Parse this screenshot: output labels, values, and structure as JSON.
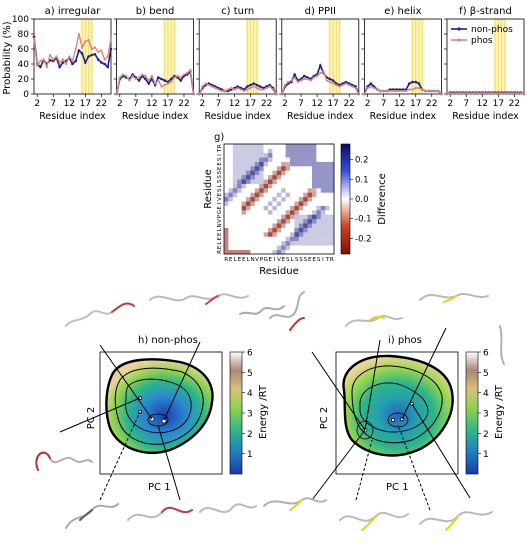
{
  "chart_data": [
    {
      "type": "line",
      "title": "a) irregular",
      "xlabel": "Residue index",
      "ylabel": "Probability (%)",
      "xticks": [
        2,
        7,
        12,
        17,
        22
      ],
      "yticks": [
        0,
        20,
        40,
        60,
        80,
        100
      ],
      "ylim": [
        0,
        100
      ],
      "xlim": [
        1,
        25
      ],
      "highlight_residues": [
        16,
        17,
        18,
        19
      ],
      "series": [
        {
          "name": "non-phos",
          "color": "#1f1f8f",
          "values": [
            76,
            40,
            36,
            45,
            40,
            45,
            44,
            48,
            36,
            42,
            44,
            48,
            40,
            44,
            58,
            54,
            42,
            50,
            52,
            53,
            46,
            42,
            40,
            36,
            60
          ]
        },
        {
          "name": "phos",
          "color": "#d8887a",
          "values": [
            74,
            38,
            44,
            46,
            36,
            52,
            46,
            50,
            42,
            46,
            40,
            50,
            44,
            60,
            80,
            62,
            70,
            72,
            60,
            62,
            56,
            58,
            46,
            50,
            74
          ]
        }
      ]
    },
    {
      "type": "line",
      "title": "b) bend",
      "xlabel": "Residue index",
      "xticks": [
        2,
        7,
        12,
        17,
        22
      ],
      "ylim": [
        0,
        100
      ],
      "xlim": [
        1,
        25
      ],
      "highlight_residues": [
        16,
        17,
        18,
        19
      ],
      "series": [
        {
          "name": "non-phos",
          "color": "#1f1f8f",
          "values": [
            0,
            20,
            24,
            22,
            20,
            26,
            22,
            18,
            24,
            20,
            14,
            20,
            12,
            22,
            20,
            18,
            16,
            20,
            24,
            22,
            18,
            24,
            26,
            30,
            0
          ]
        },
        {
          "name": "phos",
          "color": "#d8887a",
          "values": [
            0,
            22,
            26,
            24,
            18,
            24,
            20,
            22,
            26,
            24,
            18,
            24,
            14,
            18,
            10,
            12,
            14,
            16,
            22,
            24,
            22,
            26,
            28,
            32,
            0
          ]
        }
      ]
    },
    {
      "type": "line",
      "title": "c) turn",
      "xlabel": "Residue index",
      "xticks": [
        2,
        7,
        12,
        17,
        22
      ],
      "ylim": [
        0,
        100
      ],
      "xlim": [
        1,
        25
      ],
      "highlight_residues": [
        16,
        17,
        18,
        19
      ],
      "series": [
        {
          "name": "non-phos",
          "color": "#1f1f8f",
          "values": [
            0,
            8,
            12,
            14,
            12,
            10,
            8,
            6,
            4,
            4,
            6,
            8,
            10,
            8,
            6,
            10,
            12,
            14,
            12,
            10,
            8,
            10,
            12,
            8,
            0
          ]
        },
        {
          "name": "phos",
          "color": "#d8887a",
          "values": [
            0,
            10,
            14,
            12,
            10,
            8,
            6,
            4,
            4,
            6,
            8,
            6,
            8,
            6,
            4,
            6,
            8,
            10,
            8,
            6,
            6,
            8,
            10,
            6,
            0
          ]
        }
      ]
    },
    {
      "type": "line",
      "title": "d) PPII",
      "xlabel": "Residue index",
      "xticks": [
        2,
        7,
        12,
        17,
        22
      ],
      "ylim": [
        0,
        100
      ],
      "xlim": [
        1,
        25
      ],
      "highlight_residues": [
        16,
        17,
        18,
        19
      ],
      "series": [
        {
          "name": "non-phos",
          "color": "#1f1f8f",
          "values": [
            0,
            10,
            14,
            16,
            26,
            18,
            20,
            24,
            22,
            20,
            24,
            26,
            38,
            28,
            22,
            20,
            18,
            14,
            12,
            14,
            16,
            14,
            12,
            10,
            0
          ]
        },
        {
          "name": "phos",
          "color": "#d8887a",
          "values": [
            0,
            12,
            16,
            18,
            22,
            16,
            18,
            20,
            20,
            18,
            22,
            24,
            28,
            30,
            18,
            16,
            14,
            12,
            10,
            12,
            14,
            12,
            10,
            8,
            0
          ]
        }
      ]
    },
    {
      "type": "line",
      "title": "e) helix",
      "xlabel": "Residue index",
      "xticks": [
        2,
        7,
        12,
        17,
        22
      ],
      "ylim": [
        0,
        100
      ],
      "xlim": [
        1,
        25
      ],
      "highlight_residues": [
        16,
        17,
        18,
        19
      ],
      "series": [
        {
          "name": "non-phos",
          "color": "#1f1f8f",
          "values": [
            0,
            10,
            14,
            10,
            6,
            4,
            4,
            4,
            6,
            6,
            6,
            6,
            6,
            6,
            14,
            16,
            16,
            14,
            6,
            4,
            4,
            4,
            4,
            4,
            0
          ]
        },
        {
          "name": "phos",
          "color": "#d8887a",
          "values": [
            0,
            8,
            10,
            8,
            6,
            4,
            4,
            4,
            4,
            4,
            4,
            4,
            4,
            4,
            6,
            6,
            8,
            8,
            6,
            4,
            4,
            4,
            4,
            4,
            0
          ]
        }
      ]
    },
    {
      "type": "line",
      "title": "f) β-strand",
      "xlabel": "Residue index",
      "xticks": [
        2,
        7,
        12,
        17,
        22
      ],
      "ylim": [
        0,
        100
      ],
      "xlim": [
        1,
        25
      ],
      "highlight_residues": [
        16,
        17,
        18,
        19
      ],
      "legend": {
        "entries": [
          "non-phos",
          "phos"
        ],
        "placement": "top-right"
      },
      "series": [
        {
          "name": "non-phos",
          "color": "#1f1f8f",
          "values": [
            0,
            2,
            2,
            2,
            2,
            2,
            2,
            2,
            2,
            2,
            2,
            2,
            2,
            2,
            2,
            2,
            2,
            2,
            2,
            2,
            2,
            2,
            2,
            2,
            0
          ]
        },
        {
          "name": "phos",
          "color": "#d8887a",
          "values": [
            0,
            1,
            1,
            1,
            1,
            1,
            1,
            1,
            1,
            1,
            1,
            1,
            1,
            1,
            1,
            1,
            1,
            1,
            1,
            1,
            1,
            1,
            1,
            1,
            0
          ]
        }
      ]
    },
    {
      "type": "heatmap",
      "title": "g)",
      "xlabel": "Residue",
      "ylabel": "Residue",
      "tick_labels": "RELEELNVPGEIVESLSSSEESITR",
      "colorbar_label": "Difference",
      "colorbar_ticks": [
        -0.2,
        -0.1,
        0.0,
        0.1,
        0.2
      ],
      "zlim": [
        -0.28,
        0.28
      ],
      "colors": {
        "negative": "#8b1a0a",
        "zero": "#ffffff",
        "positive": "#0a0a7a"
      },
      "values_description": "symmetric difference map; red band near i/i+6 diagonal, blue band near i/i+12, blue block top-right"
    },
    {
      "type": "heatmap",
      "title": "h) non-phos",
      "xlabel": "PC 1",
      "ylabel": "PC 2",
      "colorbar_label": "Energy /RT",
      "colorbar_ticks": [
        1,
        2,
        3,
        4,
        5,
        6
      ],
      "zlim": [
        0,
        6
      ]
    },
    {
      "type": "heatmap",
      "title": "i) phos",
      "xlabel": "PC 1",
      "ylabel": "PC 2",
      "colorbar_label": "Energy /RT",
      "colorbar_ticks": [
        1,
        2,
        3,
        4,
        5,
        6
      ],
      "zlim": [
        0,
        6
      ]
    }
  ]
}
